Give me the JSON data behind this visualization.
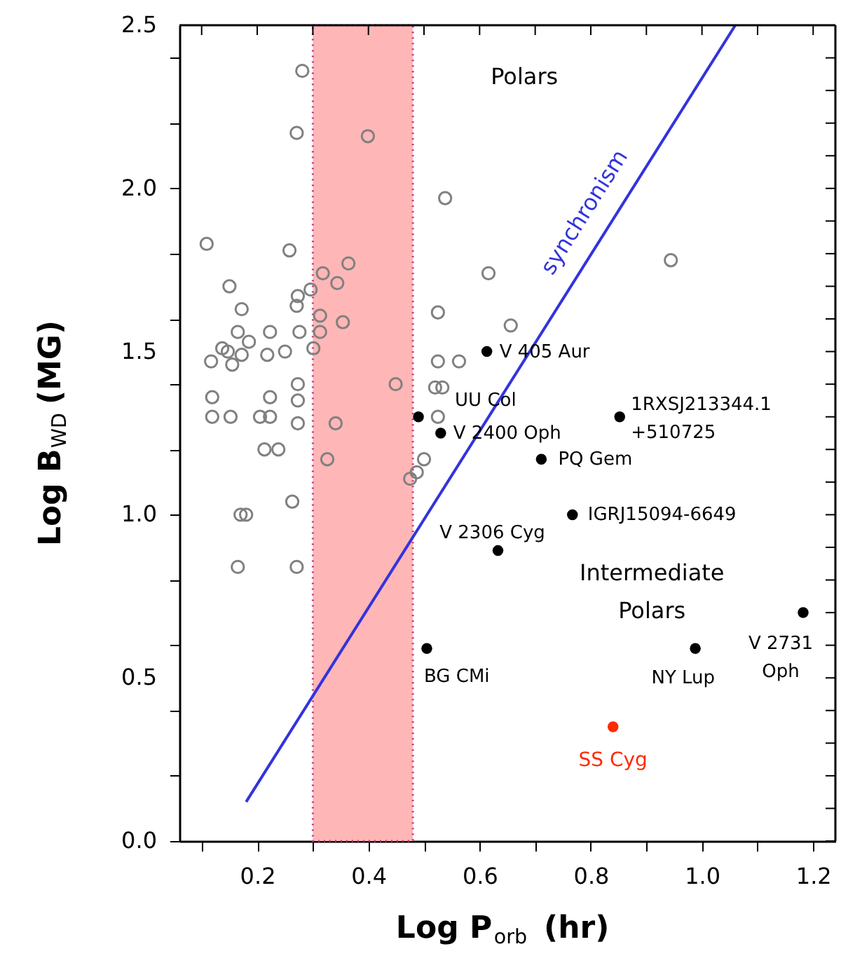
{
  "chart_data": {
    "type": "scatter",
    "xlabel": "Log P$_{orb}$ (hr)",
    "ylabel": "Log B$_{WD}$ (MG)",
    "xlim": [
      0.06,
      1.24
    ],
    "ylim": [
      0,
      2.5
    ],
    "xticks": [
      {
        "value": 0.1,
        "label": null
      },
      0.2,
      {
        "value": 0.3,
        "label": null
      },
      0.4,
      {
        "value": 0.5,
        "label": null
      },
      0.6,
      {
        "value": 0.7,
        "label": null
      },
      0.8,
      {
        "value": 0.9,
        "label": null
      },
      {
        "value": 1,
        "label": "1.0"
      },
      {
        "value": 1.1,
        "label": null
      },
      1.2
    ],
    "yticks": [
      {
        "value": 0,
        "label": "0.0"
      },
      {
        "value": 0.1,
        "label": null
      },
      {
        "value": 0.2,
        "label": null
      },
      {
        "value": 0.3,
        "label": null
      },
      {
        "value": 0.4,
        "label": null
      },
      0.5,
      {
        "value": 0.6,
        "label": null
      },
      {
        "value": 0.7,
        "label": null
      },
      {
        "value": 0.8,
        "label": null
      },
      {
        "value": 0.9,
        "label": null
      },
      {
        "value": 1,
        "label": "1.0"
      },
      {
        "value": 1.1,
        "label": null
      },
      {
        "value": 1.2,
        "label": null
      },
      {
        "value": 1.3,
        "label": null
      },
      {
        "value": 1.4,
        "label": null
      },
      1.5,
      {
        "value": 1.6,
        "label": null
      },
      {
        "value": 1.7,
        "label": null
      },
      {
        "value": 1.8,
        "label": null
      },
      {
        "value": 1.9,
        "label": null
      },
      {
        "value": 2,
        "label": "2.0"
      },
      {
        "value": 2.1,
        "label": null
      },
      {
        "value": 2.2,
        "label": null
      },
      {
        "value": 2.3,
        "label": null
      },
      {
        "value": 2.4,
        "label": null
      },
      2.5
    ],
    "grid": false,
    "marker": "circle",
    "bands": [
      {
        "axis": "x",
        "from": 0.3,
        "to": 0.48,
        "color": "#ffb6b6"
      }
    ],
    "series": [
      {
        "type": "scatter",
        "color": "#808080",
        "x": [
          0.281,
          0.271,
          0.399,
          0.538,
          0.109,
          0.258,
          0.364,
          0.318,
          0.344,
          0.296,
          0.273,
          0.15,
          0.172,
          0.271,
          0.313,
          0.354,
          0.313,
          0.165,
          0.223,
          0.276,
          0.117,
          0.137,
          0.147,
          0.185,
          0.172,
          0.155,
          0.218,
          0.25,
          0.301,
          0.119,
          0.119,
          0.152,
          0.205,
          0.223,
          0.223,
          0.273,
          0.273,
          0.273,
          0.341,
          0.449,
          0.326,
          0.213,
          0.238,
          0.263,
          0.17,
          0.18,
          0.165,
          0.271,
          0.475,
          0.487,
          0.5,
          0.525,
          0.656,
          0.525,
          0.563,
          0.52,
          0.533,
          0.525,
          0.616,
          0.944
        ],
        "values": [
          2.36,
          2.17,
          2.16,
          1.97,
          1.83,
          1.81,
          1.77,
          1.74,
          1.71,
          1.69,
          1.67,
          1.7,
          1.63,
          1.64,
          1.61,
          1.59,
          1.56,
          1.56,
          1.56,
          1.56,
          1.47,
          1.51,
          1.5,
          1.53,
          1.49,
          1.46,
          1.49,
          1.5,
          1.51,
          1.36,
          1.3,
          1.3,
          1.3,
          1.3,
          1.36,
          1.4,
          1.35,
          1.28,
          1.28,
          1.4,
          1.17,
          1.2,
          1.2,
          1.04,
          1.0,
          1.0,
          0.84,
          0.84,
          1.11,
          1.13,
          1.17,
          1.62,
          1.58,
          1.47,
          1.47,
          1.39,
          1.39,
          1.3,
          1.74,
          1.78
        ]
      },
      {
        "type": "scatter",
        "color": "#000000",
        "x": [
          0.613,
          0.49,
          0.53,
          0.711,
          0.852,
          0.767,
          0.633,
          0.505,
          0.988,
          1.182
        ],
        "values": [
          1.5,
          1.3,
          1.25,
          1.17,
          1.3,
          1.0,
          0.89,
          0.59,
          0.59,
          0.7
        ]
      },
      {
        "type": "scatter",
        "name": "SS Cyg",
        "color": "#ff2a00",
        "x": [
          0.84
        ],
        "values": [
          0.35
        ]
      },
      {
        "type": "line",
        "name": "synchronism",
        "color": "#3333dd",
        "marker": "none",
        "line_style": "solid",
        "x": [
          0.18,
          1.06
        ],
        "values": [
          0.12,
          2.5
        ]
      }
    ],
    "annotations": [
      {
        "text": "V 405 Aur",
        "x": 0.613,
        "y": 1.5
      },
      {
        "text": "UU Col",
        "x": 0.49,
        "y": 1.3
      },
      {
        "text": "V 2400 Oph",
        "x": 0.53,
        "y": 1.25
      },
      {
        "text": "PQ Gem",
        "x": 0.711,
        "y": 1.17
      },
      {
        "text": "1RXSJ213344.1\n+510725",
        "x": 0.852,
        "y": 1.3
      },
      {
        "text": "IGRJ15094-6649",
        "x": 0.767,
        "y": 1.0
      },
      {
        "text": "V 2306 Cyg",
        "x": 0.633,
        "y": 0.89
      },
      {
        "text": "BG CMi",
        "x": 0.505,
        "y": 0.59
      },
      {
        "text": "NY Lup",
        "x": 0.988,
        "y": 0.59
      },
      {
        "text": "V 2731\nOph",
        "x": 1.182,
        "y": 0.7
      },
      "Polars",
      "Intermediate\nPolars"
    ]
  }
}
